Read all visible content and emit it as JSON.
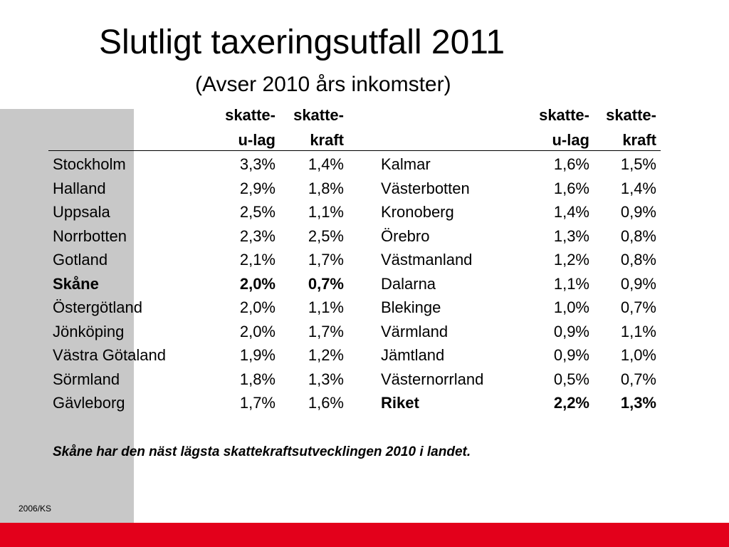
{
  "slide": {
    "title": "Slutligt taxeringsutfall 2011",
    "subtitle": "(Avser 2010 års inkomster)",
    "note": "Skåne har den näst lägsta skattekraftsutvecklingen 2010 i landet.",
    "footer": "2006/KS",
    "colors": {
      "accent_red": "#e3001b",
      "side_gray": "#c8c8c8"
    }
  },
  "table": {
    "headers": {
      "col1_line1": "skatte-",
      "col1_line2": "u-lag",
      "col2_line1": "skatte-",
      "col2_line2": "kraft"
    },
    "left": [
      {
        "name": "Stockholm",
        "ulag": "3,3%",
        "kraft": "1,4%",
        "bold": false
      },
      {
        "name": "Halland",
        "ulag": "2,9%",
        "kraft": "1,8%",
        "bold": false
      },
      {
        "name": "Uppsala",
        "ulag": "2,5%",
        "kraft": "1,1%",
        "bold": false
      },
      {
        "name": "Norrbotten",
        "ulag": "2,3%",
        "kraft": "2,5%",
        "bold": false
      },
      {
        "name": "Gotland",
        "ulag": "2,1%",
        "kraft": "1,7%",
        "bold": false
      },
      {
        "name": "Skåne",
        "ulag": "2,0%",
        "kraft": "0,7%",
        "bold": true
      },
      {
        "name": "Östergötland",
        "ulag": "2,0%",
        "kraft": "1,1%",
        "bold": false
      },
      {
        "name": "Jönköping",
        "ulag": "2,0%",
        "kraft": "1,7%",
        "bold": false
      },
      {
        "name": "Västra Götaland",
        "ulag": "1,9%",
        "kraft": "1,2%",
        "bold": false
      },
      {
        "name": "Sörmland",
        "ulag": "1,8%",
        "kraft": "1,3%",
        "bold": false
      },
      {
        "name": "Gävleborg",
        "ulag": "1,7%",
        "kraft": "1,6%",
        "bold": false
      }
    ],
    "right": [
      {
        "name": "Kalmar",
        "ulag": "1,6%",
        "kraft": "1,5%",
        "bold": false
      },
      {
        "name": "Västerbotten",
        "ulag": "1,6%",
        "kraft": "1,4%",
        "bold": false
      },
      {
        "name": "Kronoberg",
        "ulag": "1,4%",
        "kraft": "0,9%",
        "bold": false
      },
      {
        "name": "Örebro",
        "ulag": "1,3%",
        "kraft": "0,8%",
        "bold": false
      },
      {
        "name": "Västmanland",
        "ulag": "1,2%",
        "kraft": "0,8%",
        "bold": false
      },
      {
        "name": "Dalarna",
        "ulag": "1,1%",
        "kraft": "0,9%",
        "bold": false
      },
      {
        "name": "Blekinge",
        "ulag": "1,0%",
        "kraft": "0,7%",
        "bold": false
      },
      {
        "name": "Värmland",
        "ulag": "0,9%",
        "kraft": "1,1%",
        "bold": false
      },
      {
        "name": "Jämtland",
        "ulag": "0,9%",
        "kraft": "1,0%",
        "bold": false
      },
      {
        "name": "Västernorrland",
        "ulag": "0,5%",
        "kraft": "0,7%",
        "bold": false
      },
      {
        "name": "Riket",
        "ulag": "2,2%",
        "kraft": "1,3%",
        "bold": true
      }
    ]
  }
}
